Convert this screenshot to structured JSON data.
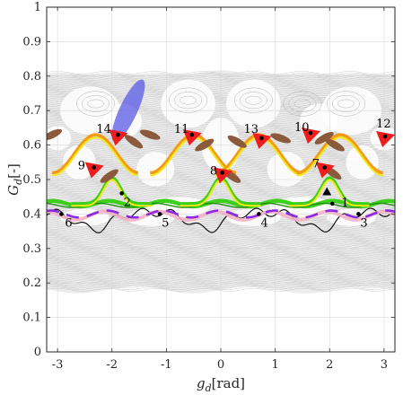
{
  "chart_data": {
    "type": "scatter",
    "xlabel": "g_d [rad]",
    "ylabel": "G_d [-]",
    "xlabel_parts": {
      "main": "g",
      "sub": "d",
      "unit": "[rad]"
    },
    "ylabel_parts": {
      "main": "G",
      "sub": "d",
      "unit": "[-]"
    },
    "xlim": [
      -3.2,
      3.2
    ],
    "ylim": [
      0,
      1
    ],
    "xticks": [
      -3,
      -2,
      -1,
      0,
      1,
      2,
      3
    ],
    "xtick_labels": [
      "-3",
      "-2",
      "-1",
      "0",
      "1",
      "2",
      "3"
    ],
    "yticks": [
      0,
      0.1,
      0.2,
      0.3,
      0.4,
      0.5,
      0.6,
      0.7,
      0.8,
      0.9,
      1
    ],
    "ytick_labels": [
      "0",
      "0.1",
      "0.2",
      "0.3",
      "0.4",
      "0.5",
      "0.6",
      "0.7",
      "0.8",
      "0.9",
      "1"
    ],
    "grid": true,
    "colors": {
      "background_orbits": "#b4b4b4",
      "red": "#ee1c1c",
      "orange": "#f59a17",
      "yellow": "#f2e81a",
      "green": "#3ccf1c",
      "brown": "#8b5a3c",
      "purple": "#8a2be2",
      "pink": "#f2b3c7",
      "blue": "#5a5ae6",
      "black": "#000000"
    },
    "chaotic_band": {
      "upper": [
        0.6,
        0.805
      ],
      "lower": [
        0.18,
        0.4
      ]
    },
    "labeled_points": [
      {
        "label": "1",
        "x": 2.05,
        "y": 0.43
      },
      {
        "label": "2",
        "x": -1.82,
        "y": 0.46
      },
      {
        "label": "3",
        "x": 2.53,
        "y": 0.4
      },
      {
        "label": "4",
        "x": 0.7,
        "y": 0.4
      },
      {
        "label": "5",
        "x": -1.12,
        "y": 0.4
      },
      {
        "label": "6",
        "x": -2.93,
        "y": 0.4
      },
      {
        "label": "7",
        "x": 1.91,
        "y": 0.535
      },
      {
        "label": "8",
        "x": 0.03,
        "y": 0.52
      },
      {
        "label": "9",
        "x": -2.33,
        "y": 0.535
      },
      {
        "label": "10",
        "x": 1.65,
        "y": 0.635
      },
      {
        "label": "11",
        "x": -0.53,
        "y": 0.63
      },
      {
        "label": "12",
        "x": 3.02,
        "y": 0.625
      },
      {
        "label": "13",
        "x": 0.75,
        "y": 0.62
      },
      {
        "label": "14",
        "x": -1.89,
        "y": 0.63
      }
    ],
    "triangle_marker": {
      "x": 1.95,
      "y": 0.465
    }
  }
}
